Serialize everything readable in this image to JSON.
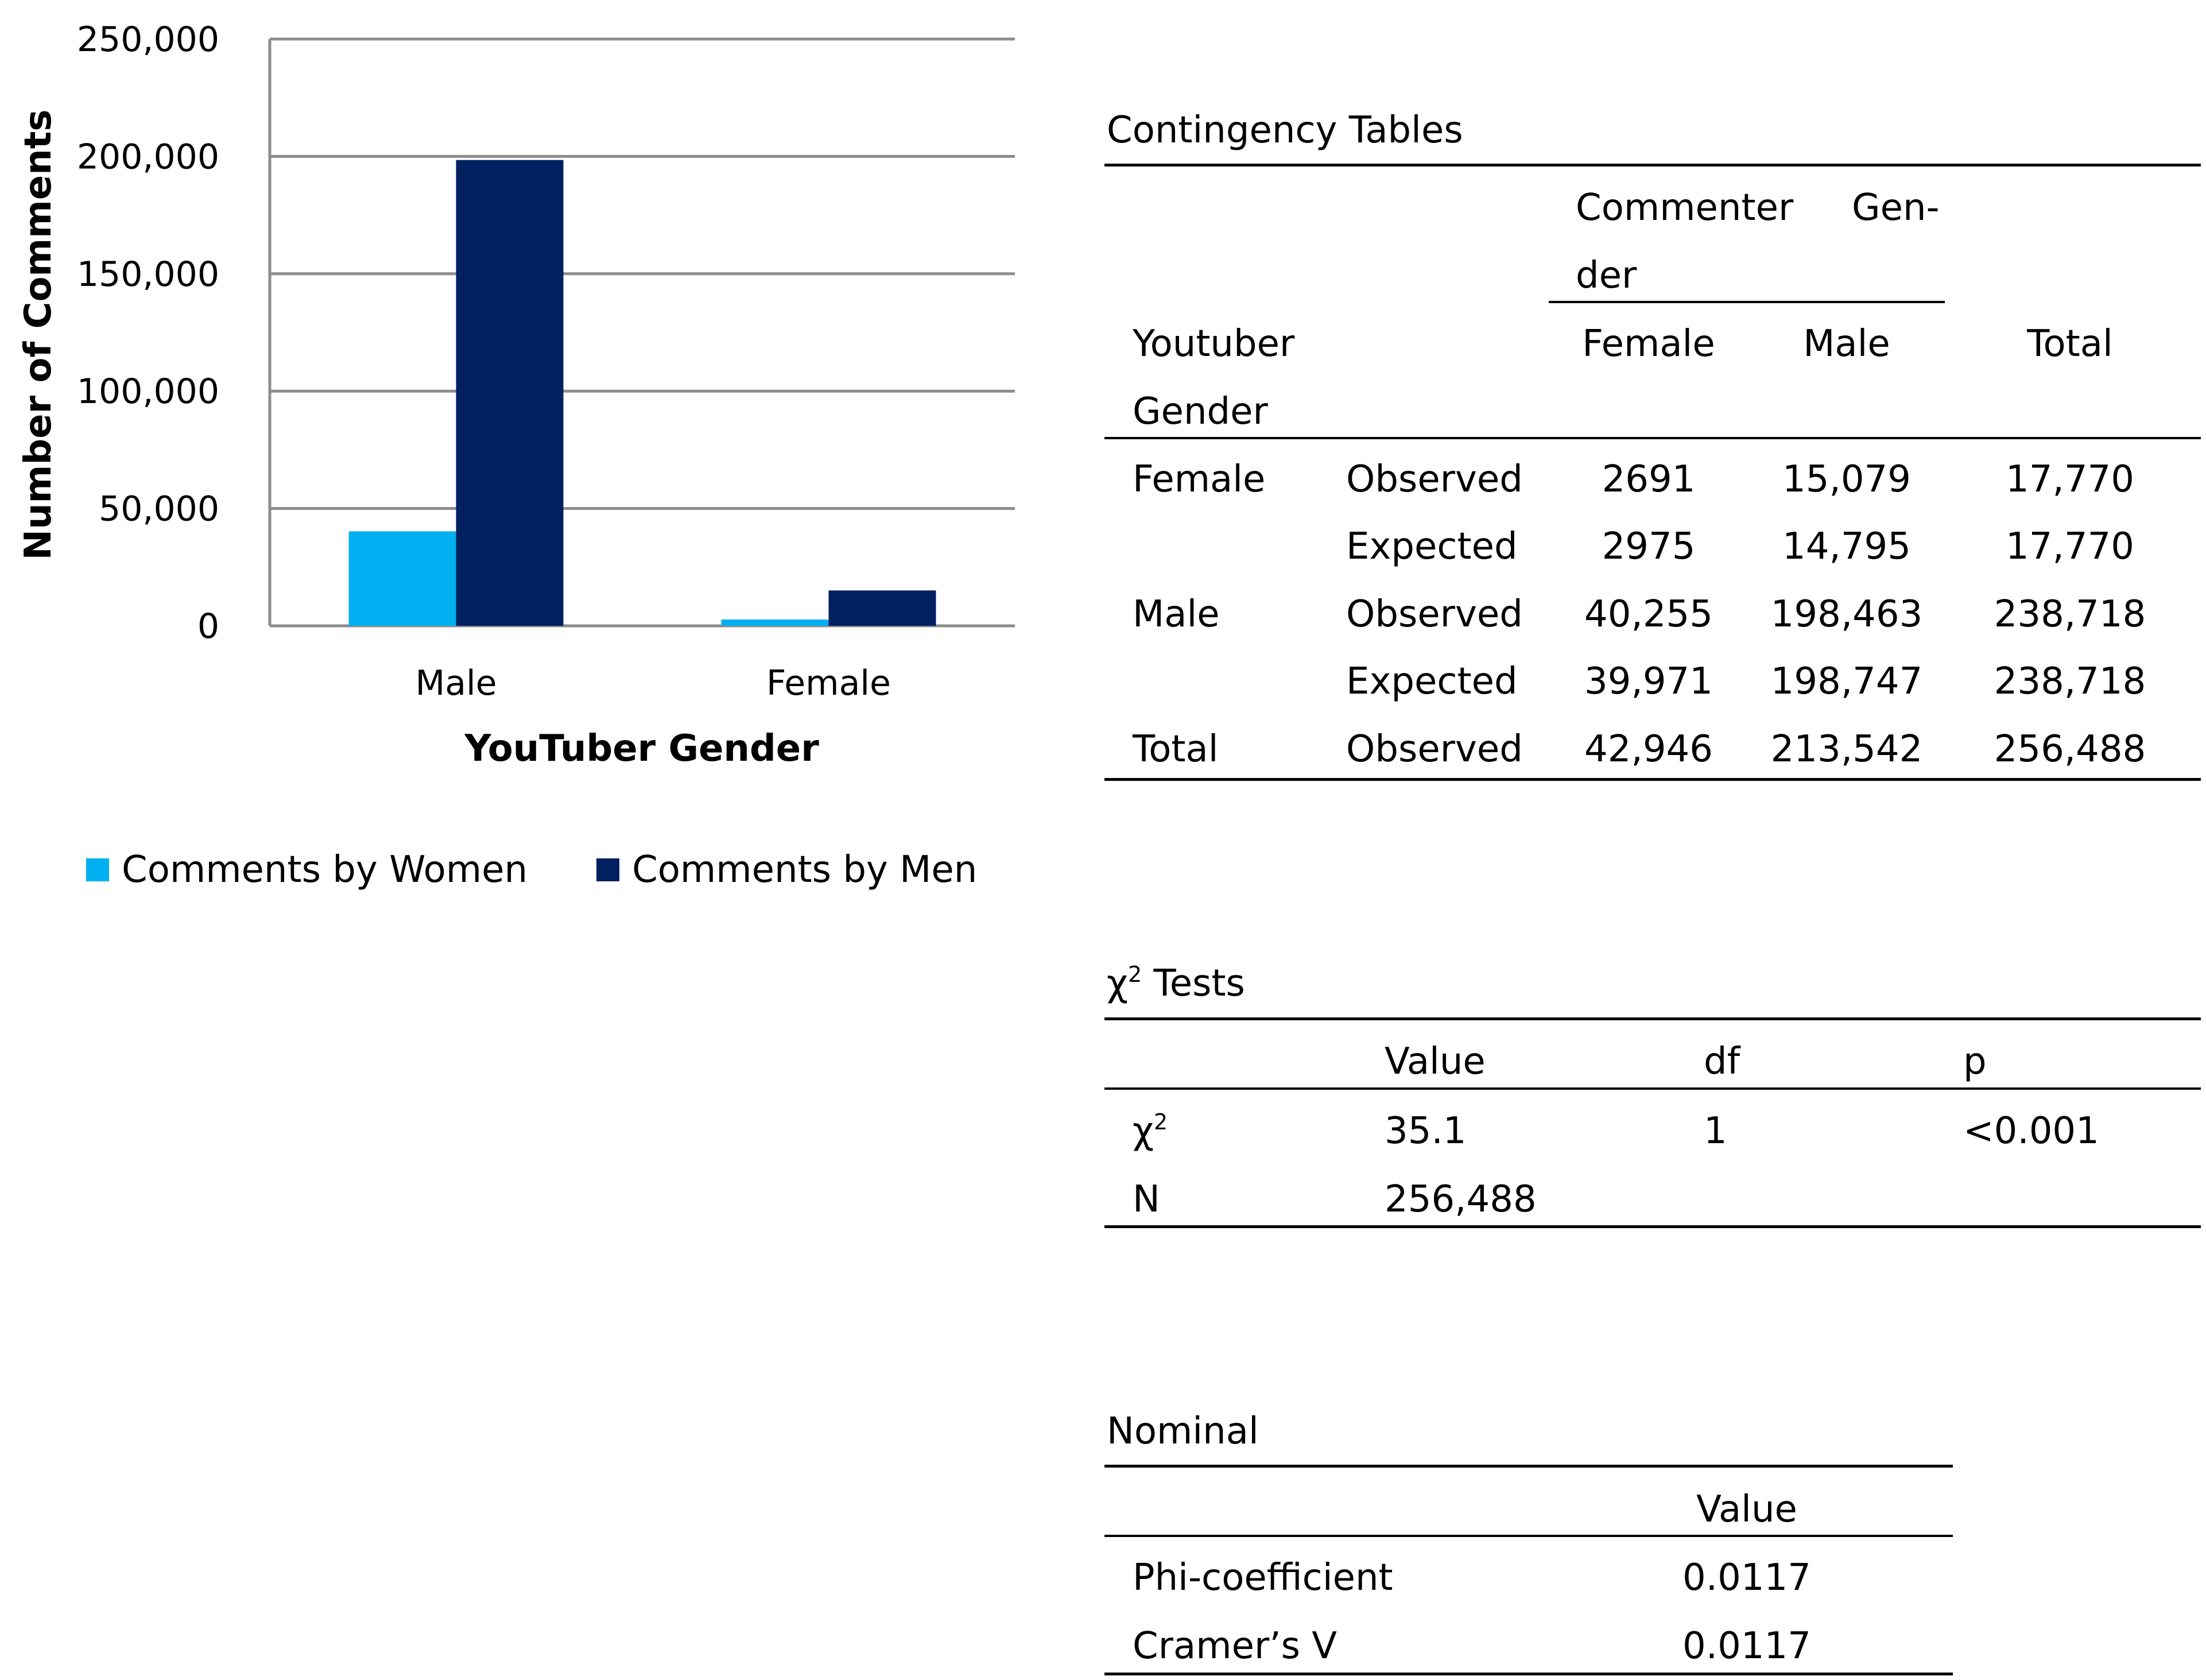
{
  "chart_data": {
    "type": "bar",
    "categories": [
      "Male",
      "Female"
    ],
    "series": [
      {
        "name": "Comments by Women",
        "color": "#00B0F0",
        "values": [
          40255,
          2691
        ]
      },
      {
        "name": "Comments by Men",
        "color": "#002060",
        "values": [
          198463,
          15079
        ]
      }
    ],
    "yticks": [
      "0",
      "50,000",
      "100,000",
      "150,000",
      "200,000",
      "250,000"
    ],
    "ylim": [
      0,
      250000
    ],
    "xlabel": "YouTuber Gender",
    "ylabel": "Number of Comments",
    "grid": true,
    "legend": "bottom"
  },
  "contingency": {
    "title": "Contingency Tables",
    "header_group_line1": "Commenter     Gen-",
    "header_group_line2": "der",
    "row_header_line1": "Youtuber",
    "row_header_line2": "Gender",
    "col_female": "Female",
    "col_male": "Male",
    "col_total": "Total",
    "rows": [
      {
        "group": "Female",
        "type": "Observed",
        "female": "2691",
        "male": "15,079",
        "total": "17,770"
      },
      {
        "group": "",
        "type": "Expected",
        "female": "2975",
        "male": "14,795",
        "total": "17,770"
      },
      {
        "group": "Male",
        "type": "Observed",
        "female": "40,255",
        "male": "198,463",
        "total": "238,718"
      },
      {
        "group": "",
        "type": "Expected",
        "female": "39,971",
        "male": "198,747",
        "total": "238,718"
      },
      {
        "group": "Total",
        "type": "Observed",
        "female": "42,946",
        "male": "213,542",
        "total": "256,488"
      }
    ]
  },
  "chi_tests": {
    "title_symbol": "χ",
    "title_sup": "2",
    "title_rest": " Tests",
    "col_value": "Value",
    "col_df": "df",
    "col_p": "p",
    "chi_symbol": "χ",
    "chi_sup": "2",
    "chi_value": "35.1",
    "chi_df": "1",
    "chi_p": "<0.001",
    "n_label": "N",
    "n_value": "256,488"
  },
  "nominal": {
    "title": "Nominal",
    "col_value": "Value",
    "phi_label": "Phi-coefficient",
    "phi_value": "0.0117",
    "cramer_label": "Cramer’s V",
    "cramer_value": "0.0117"
  }
}
